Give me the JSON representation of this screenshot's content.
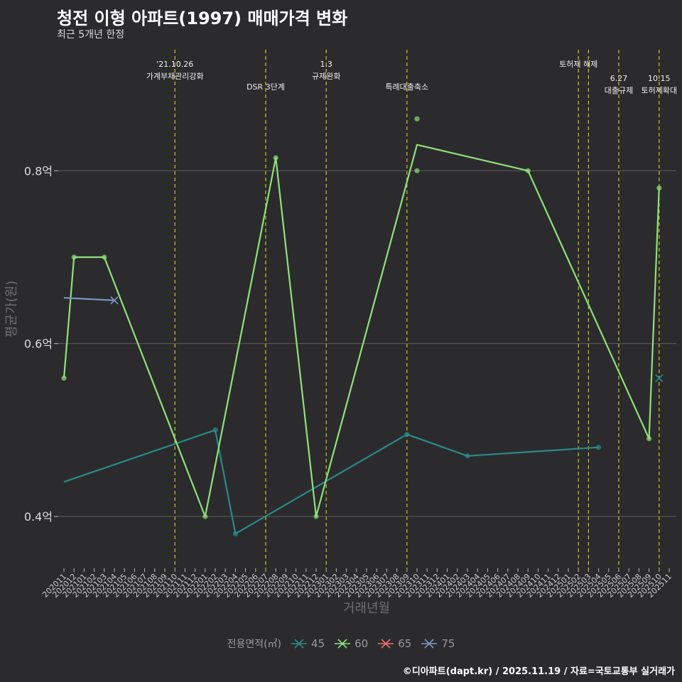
{
  "title": "청전 이형 아파트(1997) 매매가격 변화",
  "subtitle": "최근 5개년 한정",
  "caption": "©디아파트(dapt.kr) / 2025.11.19 / 자료=국토교통부 실거래가",
  "chart_data": {
    "type": "line",
    "xlabel": "거래년월",
    "ylabel": "평균가(원)",
    "x_categories": [
      "202011",
      "202012",
      "202101",
      "202102",
      "202103",
      "202104",
      "202105",
      "202106",
      "202107",
      "202108",
      "202109",
      "202110",
      "202111",
      "202112",
      "202201",
      "202202",
      "202203",
      "202204",
      "202205",
      "202206",
      "202207",
      "202208",
      "202209",
      "202210",
      "202211",
      "202212",
      "202301",
      "202302",
      "202303",
      "202304",
      "202305",
      "202306",
      "202307",
      "202308",
      "202309",
      "202310",
      "202311",
      "202312",
      "202401",
      "202402",
      "202403",
      "202404",
      "202405",
      "202406",
      "202407",
      "202408",
      "202409",
      "202410",
      "202411",
      "202412",
      "202501",
      "202502",
      "202503",
      "202504",
      "202505",
      "202506",
      "202507",
      "202508",
      "202509",
      "202510",
      "202511"
    ],
    "y_ticks": [
      {
        "value": 0.4,
        "label": "0.4억"
      },
      {
        "value": 0.6,
        "label": "0.6억"
      },
      {
        "value": 0.8,
        "label": "0.8억"
      }
    ],
    "ylim": [
      0.34,
      0.94
    ],
    "series": [
      {
        "name": "45",
        "color": "#2a8a8a",
        "line": [
          [
            "202011",
            0.44
          ],
          [
            "202202",
            0.5
          ],
          [
            "202204",
            0.38
          ],
          [
            "202309",
            0.495
          ],
          [
            "202403",
            0.47
          ],
          [
            "202504",
            0.48
          ]
        ],
        "points": [
          [
            "202202",
            0.5
          ],
          [
            "202204",
            0.38
          ],
          [
            "202309",
            0.495
          ],
          [
            "202403",
            0.47
          ],
          [
            "202504",
            0.48
          ]
        ],
        "crosses": [
          [
            "202510",
            0.56
          ]
        ]
      },
      {
        "name": "60",
        "color": "#90e07a",
        "line": [
          [
            "202011",
            0.56
          ],
          [
            "202012",
            0.7
          ],
          [
            "202103",
            0.7
          ],
          [
            "202201",
            0.4
          ],
          [
            "202208",
            0.815
          ],
          [
            "202212",
            0.4
          ],
          [
            "202310",
            0.83
          ],
          [
            "202409",
            0.8
          ],
          [
            "202509",
            0.49
          ],
          [
            "202510",
            0.78
          ]
        ],
        "points": [
          [
            "202011",
            0.56
          ],
          [
            "202012",
            0.7
          ],
          [
            "202103",
            0.7
          ],
          [
            "202201",
            0.4
          ],
          [
            "202208",
            0.815
          ],
          [
            "202212",
            0.4
          ],
          [
            "202310",
            0.86
          ],
          [
            "202310",
            0.8
          ],
          [
            "202409",
            0.8
          ],
          [
            "202509",
            0.49
          ],
          [
            "202510",
            0.78
          ]
        ],
        "crosses": []
      },
      {
        "name": "65",
        "color": "#f07070",
        "line": [],
        "points": [],
        "crosses": []
      },
      {
        "name": "75",
        "color": "#7898c8",
        "line": [
          [
            "202011",
            0.653
          ],
          [
            "202104",
            0.65
          ]
        ],
        "points": [],
        "crosses": [
          [
            "202104",
            0.65
          ]
        ]
      }
    ],
    "events": [
      {
        "x": "202110",
        "lines": [
          "'21.10.26",
          "가계부채관리강화"
        ],
        "row": 0
      },
      {
        "x": "202207",
        "lines": [
          "DSR 3단계"
        ],
        "row": 1
      },
      {
        "x": "202301",
        "lines": [
          "1.3",
          "규제완화"
        ],
        "row": 0
      },
      {
        "x": "202309",
        "lines": [
          "특례대출축소"
        ],
        "row": 1
      },
      {
        "x": "202502",
        "lines": [
          "토허제 해제"
        ],
        "row": 0
      },
      {
        "x": "202503",
        "lines": [],
        "row": 0
      },
      {
        "x": "202506",
        "lines": [
          "6.27",
          "대출규제"
        ],
        "row": 1
      },
      {
        "x": "202510",
        "lines": [
          "10.15",
          "토허제확대"
        ],
        "row": 1
      }
    ],
    "legend": {
      "title": "전용면적(㎡)",
      "placement": "bottom"
    }
  }
}
